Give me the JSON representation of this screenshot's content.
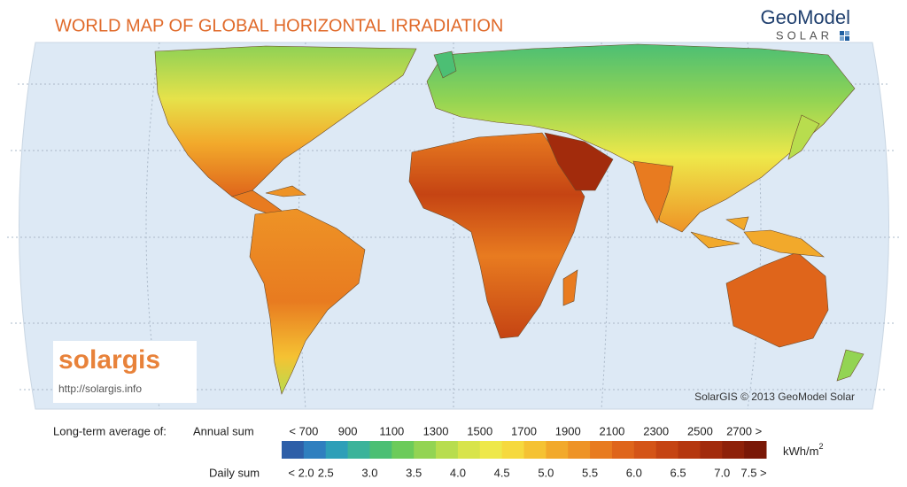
{
  "title": "WORLD MAP OF GLOBAL HORIZONTAL IRRADIATION",
  "brand": {
    "name": "GeoModel",
    "sub": "SOLAR"
  },
  "logo": {
    "name": "solargis",
    "url": "http://solargis.info"
  },
  "credit": "SolarGIS © 2013 GeoModel Solar",
  "legend": {
    "label": "Long-term average of:",
    "annual_label": "Annual sum",
    "annual_ticks": [
      "< 700",
      "900",
      "1100",
      "1300",
      "1500",
      "1700",
      "1900",
      "2100",
      "2300",
      "2500",
      "2700 >"
    ],
    "daily_label": "Daily sum",
    "daily_ticks": [
      "< 2.0",
      "2.5",
      "3.0",
      "3.5",
      "4.0",
      "4.5",
      "5.0",
      "5.5",
      "6.0",
      "6.5",
      "7.0",
      "7.5 >"
    ],
    "unit": "kWh/m",
    "unit_sup": "2",
    "colors": [
      "#2e5fa8",
      "#2f7fbf",
      "#2e9fb8",
      "#3bb39a",
      "#4cbf74",
      "#6ccb5a",
      "#93d453",
      "#b8dd4e",
      "#d8e44b",
      "#eee84a",
      "#f6d93e",
      "#f5c233",
      "#f2a92b",
      "#ee9326",
      "#e87b20",
      "#df651b",
      "#d45417",
      "#c54413",
      "#b5370f",
      "#a22b0c",
      "#8e2109",
      "#7a1807"
    ]
  }
}
